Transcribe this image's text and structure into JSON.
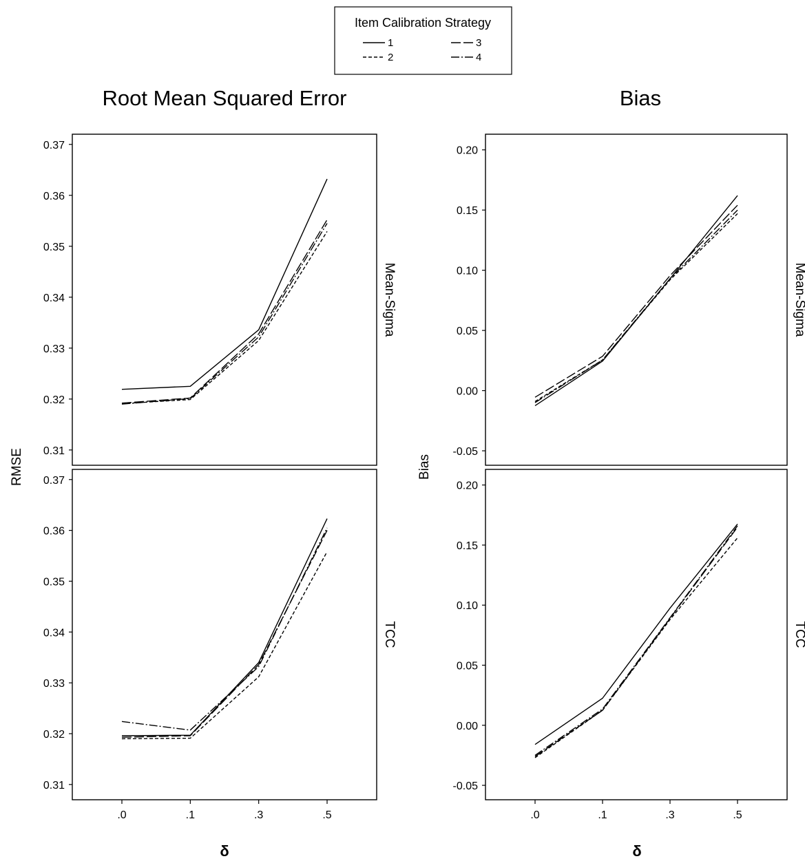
{
  "legend": {
    "title": "Item Calibration Strategy",
    "entries": [
      {
        "label": "1",
        "dash": "solid"
      },
      {
        "label": "2",
        "dash": "short-dash"
      },
      {
        "label": "3",
        "dash": "long-dash"
      },
      {
        "label": "4",
        "dash": "dash-dot"
      }
    ]
  },
  "colors": {
    "line": "#000000",
    "frame": "#000000",
    "background": "#ffffff"
  },
  "chart_data": [
    {
      "type": "line",
      "title": "Root Mean Squared Error",
      "ylabel": "RMSE",
      "xlabel": "δ",
      "categories": [
        ".0",
        ".1",
        ".3",
        ".5"
      ],
      "ylim": [
        0.307,
        0.372
      ],
      "yticks": [
        "0.31",
        "0.32",
        "0.33",
        "0.34",
        "0.35",
        "0.36",
        "0.37"
      ],
      "grid": false,
      "legend_position": "top-center",
      "facets": [
        {
          "label": "Mean-Sigma",
          "series": [
            {
              "name": "1",
              "values": [
                0.3219,
                0.3225,
                0.3336,
                0.3632
              ]
            },
            {
              "name": "2",
              "values": [
                0.3191,
                0.3199,
                0.3315,
                0.3529
              ]
            },
            {
              "name": "3",
              "values": [
                0.3192,
                0.3202,
                0.3328,
                0.3552
              ]
            },
            {
              "name": "4",
              "values": [
                0.319,
                0.3201,
                0.3322,
                0.3545
              ]
            }
          ]
        },
        {
          "label": "TCC",
          "series": [
            {
              "name": "1",
              "values": [
                0.3196,
                0.3197,
                0.334,
                0.3623
              ]
            },
            {
              "name": "2",
              "values": [
                0.319,
                0.3191,
                0.3312,
                0.3558
              ]
            },
            {
              "name": "3",
              "values": [
                0.3193,
                0.3196,
                0.3336,
                0.36
              ]
            },
            {
              "name": "4",
              "values": [
                0.3224,
                0.3207,
                0.3332,
                0.3605
              ]
            }
          ]
        }
      ]
    },
    {
      "type": "line",
      "title": "Bias",
      "ylabel": "Bias",
      "xlabel": "δ",
      "categories": [
        ".0",
        ".1",
        ".3",
        ".5"
      ],
      "ylim": [
        -0.062,
        0.213
      ],
      "yticks": [
        "-0.05",
        "0.00",
        "0.05",
        "0.10",
        "0.15",
        "0.20"
      ],
      "grid": false,
      "facets": [
        {
          "label": "Mean-Sigma",
          "series": [
            {
              "name": "1",
              "values": [
                -0.0125,
                0.0245,
                0.093,
                0.162
              ]
            },
            {
              "name": "2",
              "values": [
                -0.009,
                0.0255,
                0.092,
                0.147
              ]
            },
            {
              "name": "3",
              "values": [
                -0.0055,
                0.0285,
                0.0955,
                0.154
              ]
            },
            {
              "name": "4",
              "values": [
                -0.01,
                0.0255,
                0.093,
                0.15
              ]
            }
          ]
        },
        {
          "label": "TCC",
          "series": [
            {
              "name": "1",
              "values": [
                -0.016,
                0.0225,
                0.0975,
                0.1675
              ]
            },
            {
              "name": "2",
              "values": [
                -0.027,
                0.0125,
                0.088,
                0.156
              ]
            },
            {
              "name": "3",
              "values": [
                -0.026,
                0.0125,
                0.089,
                0.165
              ]
            },
            {
              "name": "4",
              "values": [
                -0.025,
                0.0135,
                0.0895,
                0.166
              ]
            }
          ]
        }
      ]
    }
  ]
}
